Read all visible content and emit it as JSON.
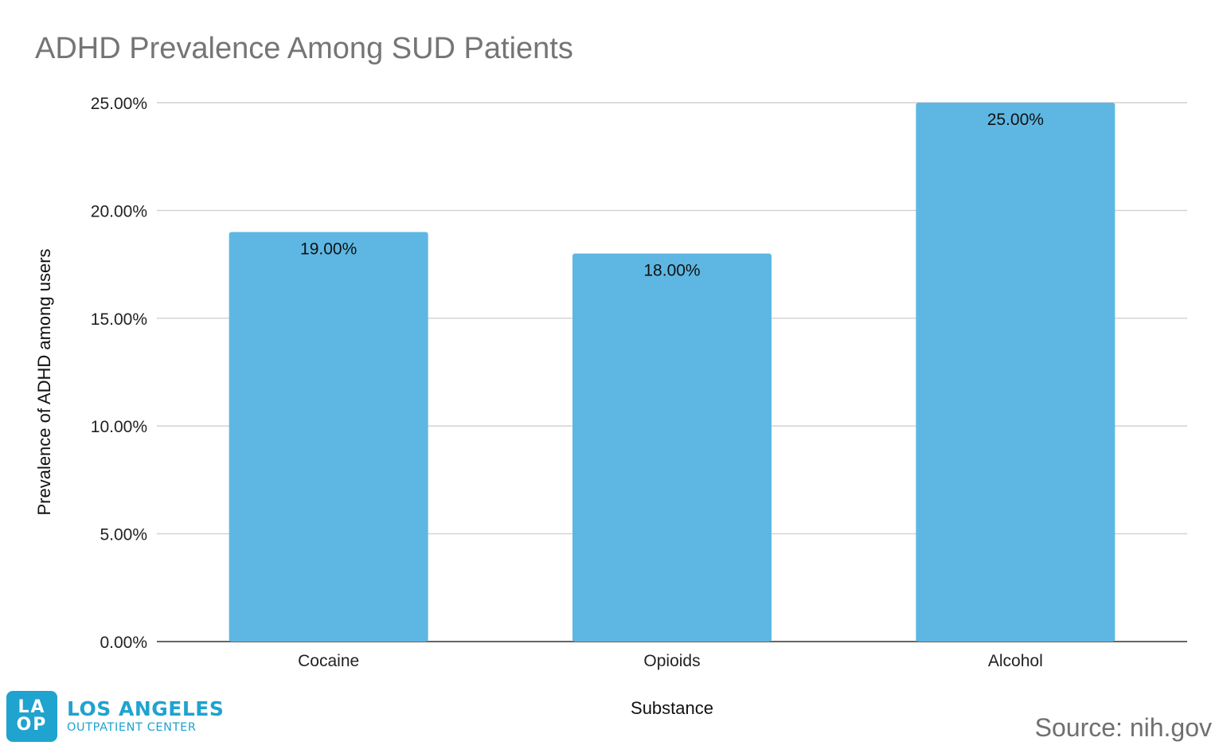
{
  "chart_data": {
    "type": "bar",
    "title": "ADHD Prevalence Among SUD Patients",
    "xlabel": "Substance",
    "ylabel": "Prevalence of ADHD among users",
    "categories": [
      "Cocaine",
      "Opioids",
      "Alcohol"
    ],
    "values": [
      19,
      18,
      25
    ],
    "data_labels": [
      "19.00%",
      "18.00%",
      "25.00%"
    ],
    "ylim": [
      0,
      25
    ],
    "yticks": [
      0,
      5,
      10,
      15,
      20,
      25
    ],
    "ytick_labels": [
      "0.00%",
      "5.00%",
      "10.00%",
      "15.00%",
      "20.00%",
      "25.00%"
    ],
    "grid": true,
    "legend": "none",
    "bar_color": "#5eb7e3"
  },
  "footer": {
    "logo_mark_top": "LA",
    "logo_mark_bottom": "OP",
    "logo_line1": "LOS ANGELES",
    "logo_line2": "OUTPATIENT CENTER",
    "logo_color": "#1fa3cf",
    "source": "Source: nih.gov"
  }
}
